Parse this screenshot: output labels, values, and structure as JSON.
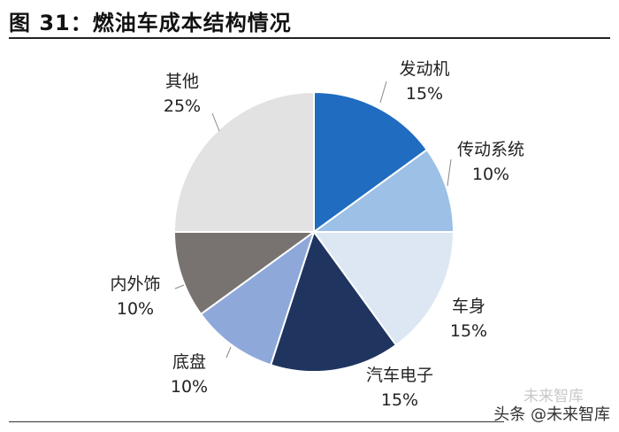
{
  "header": {
    "title": "图 31：燃油车成本结构情况"
  },
  "watermark": {
    "text": "头条 @未来智库",
    "ghost_text": "未来智库"
  },
  "chart_data": {
    "type": "pie",
    "title": "图 31：燃油车成本结构情况",
    "start": "top, clockwise",
    "slices": [
      {
        "name": "发动机",
        "value": 15,
        "label": "15%",
        "color": "#1f6cc0"
      },
      {
        "name": "传动系统",
        "value": 10,
        "label": "10%",
        "color": "#9cc0e6"
      },
      {
        "name": "车身",
        "value": 15,
        "label": "15%",
        "color": "#dde7f3"
      },
      {
        "name": "汽车电子",
        "value": 15,
        "label": "15%",
        "color": "#1f3560"
      },
      {
        "name": "底盘",
        "value": 10,
        "label": "10%",
        "color": "#8ea8da"
      },
      {
        "name": "内外饰",
        "value": 10,
        "label": "10%",
        "color": "#787370"
      },
      {
        "name": "其他",
        "value": 25,
        "label": "25%",
        "color": "#e2e2e2"
      }
    ]
  }
}
